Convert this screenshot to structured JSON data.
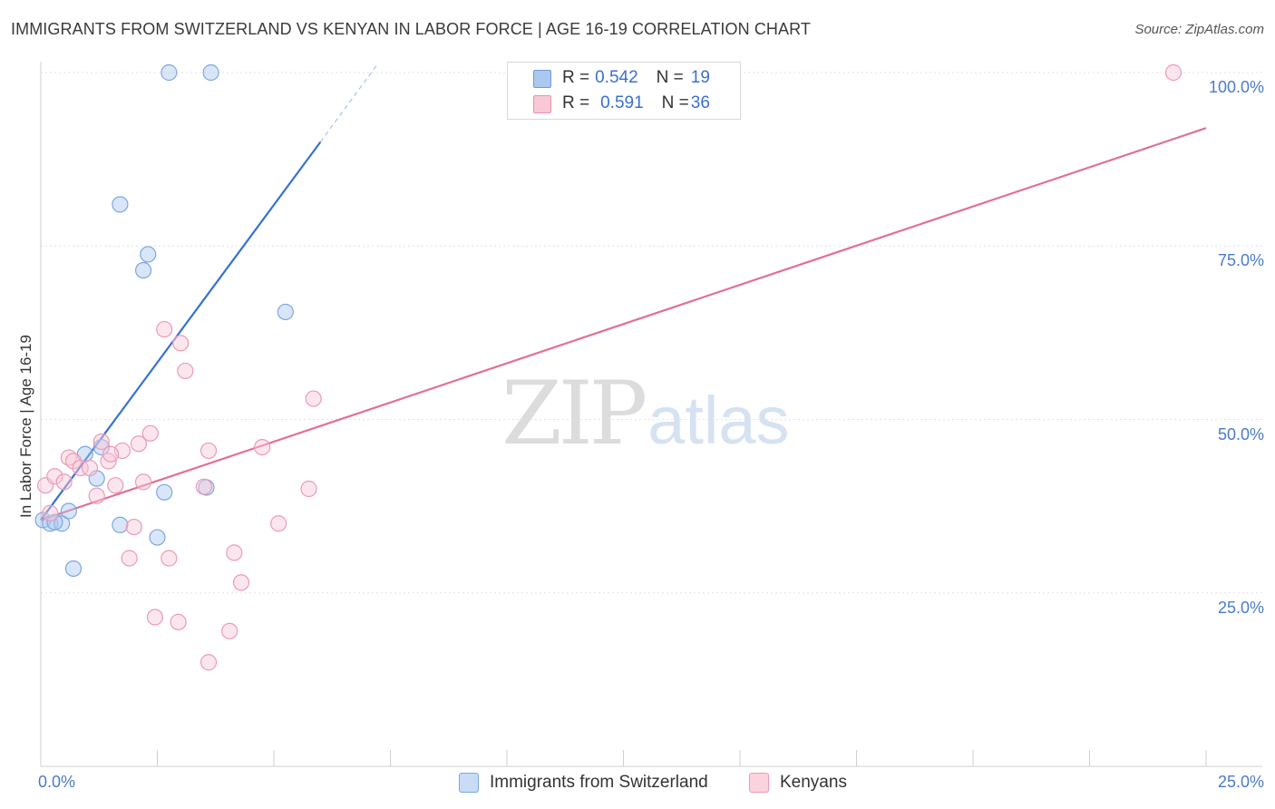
{
  "title": "IMMIGRANTS FROM SWITZERLAND VS KENYAN IN LABOR FORCE | AGE 16-19 CORRELATION CHART",
  "source": "Source: ZipAtlas.com",
  "watermark": {
    "zip": "ZIP",
    "atlas": "atlas"
  },
  "legend_box": {
    "rows": [
      {
        "r_label": "R = ",
        "r_value": "0.542",
        "n_label": "N = ",
        "n_value": "19",
        "color": "#aac8f0",
        "border": "#6f9ad8"
      },
      {
        "r_label": "R = ",
        "r_value": "0.591",
        "n_label": "N = ",
        "n_value": "36",
        "color": "#f8c8d6",
        "border": "#e891ad"
      }
    ]
  },
  "bottom_legend": [
    {
      "label": "Immigrants from Switzerland",
      "color": "#c8dcf6",
      "border": "#7ea6e0"
    },
    {
      "label": "Kenyans",
      "color": "#fbd2de",
      "border": "#ec9ab6"
    }
  ],
  "chart_data": {
    "type": "scatter",
    "xlabel": "",
    "ylabel": "In Labor Force | Age 16-19",
    "xlim": [
      0,
      25
    ],
    "ylim": [
      0,
      100
    ],
    "x_tick_labels": [
      "0.0%",
      "25.0%"
    ],
    "y_tick_labels": [
      "25.0%",
      "50.0%",
      "75.0%",
      "100.0%"
    ],
    "y_ticks": [
      25,
      50,
      75,
      100
    ],
    "grid": true,
    "series": [
      {
        "name": "Immigrants from Switzerland",
        "color": "#7ea6e0",
        "fill": "rgba(170,200,240,0.45)",
        "line_color": "#3572d2",
        "points": [
          {
            "x": 0.05,
            "y": 35.5
          },
          {
            "x": 0.2,
            "y": 35.0
          },
          {
            "x": 0.45,
            "y": 35.0
          },
          {
            "x": 0.6,
            "y": 36.8
          },
          {
            "x": 0.7,
            "y": 28.5
          },
          {
            "x": 0.95,
            "y": 45.0
          },
          {
            "x": 1.3,
            "y": 46.0
          },
          {
            "x": 1.2,
            "y": 41.5
          },
          {
            "x": 1.7,
            "y": 34.8
          },
          {
            "x": 2.5,
            "y": 33.0
          },
          {
            "x": 2.65,
            "y": 39.5
          },
          {
            "x": 3.55,
            "y": 40.2
          },
          {
            "x": 2.2,
            "y": 71.5
          },
          {
            "x": 2.3,
            "y": 73.8
          },
          {
            "x": 1.7,
            "y": 81.0
          },
          {
            "x": 5.25,
            "y": 65.5
          },
          {
            "x": 2.75,
            "y": 100.0
          },
          {
            "x": 3.65,
            "y": 100.0
          },
          {
            "x": 0.3,
            "y": 35.2
          }
        ],
        "trend": {
          "x0": 0.0,
          "y0": 35.5,
          "x1": 6.0,
          "y1": 90.0,
          "dash_to_x": 7.2,
          "dash_to_y": 101.0
        }
      },
      {
        "name": "Kenyans",
        "color": "#ec9ab6",
        "fill": "rgba(248,200,214,0.45)",
        "line_color": "#e0709a",
        "points": [
          {
            "x": 0.1,
            "y": 40.5
          },
          {
            "x": 0.3,
            "y": 41.8
          },
          {
            "x": 0.5,
            "y": 41.0
          },
          {
            "x": 0.6,
            "y": 44.5
          },
          {
            "x": 0.7,
            "y": 44.0
          },
          {
            "x": 0.85,
            "y": 43.0
          },
          {
            "x": 1.05,
            "y": 43.0
          },
          {
            "x": 1.2,
            "y": 39.0
          },
          {
            "x": 1.3,
            "y": 46.8
          },
          {
            "x": 1.45,
            "y": 44.0
          },
          {
            "x": 1.6,
            "y": 40.5
          },
          {
            "x": 1.75,
            "y": 45.5
          },
          {
            "x": 1.9,
            "y": 30.0
          },
          {
            "x": 2.0,
            "y": 34.5
          },
          {
            "x": 2.2,
            "y": 41.0
          },
          {
            "x": 2.1,
            "y": 46.5
          },
          {
            "x": 2.35,
            "y": 48.0
          },
          {
            "x": 2.45,
            "y": 21.5
          },
          {
            "x": 2.65,
            "y": 63.0
          },
          {
            "x": 2.75,
            "y": 30.0
          },
          {
            "x": 2.95,
            "y": 20.8
          },
          {
            "x": 3.0,
            "y": 61.0
          },
          {
            "x": 3.1,
            "y": 57.0
          },
          {
            "x": 3.5,
            "y": 40.3
          },
          {
            "x": 3.6,
            "y": 45.5
          },
          {
            "x": 3.6,
            "y": 15.0
          },
          {
            "x": 4.05,
            "y": 19.5
          },
          {
            "x": 4.15,
            "y": 30.8
          },
          {
            "x": 4.3,
            "y": 26.5
          },
          {
            "x": 4.75,
            "y": 46.0
          },
          {
            "x": 5.1,
            "y": 35.0
          },
          {
            "x": 5.75,
            "y": 40.0
          },
          {
            "x": 5.85,
            "y": 53.0
          },
          {
            "x": 24.3,
            "y": 100.0
          },
          {
            "x": 0.2,
            "y": 36.5
          },
          {
            "x": 1.5,
            "y": 45.0
          }
        ],
        "trend": {
          "x0": 0.0,
          "y0": 35.5,
          "x1": 25.0,
          "y1": 92.0
        }
      }
    ]
  }
}
